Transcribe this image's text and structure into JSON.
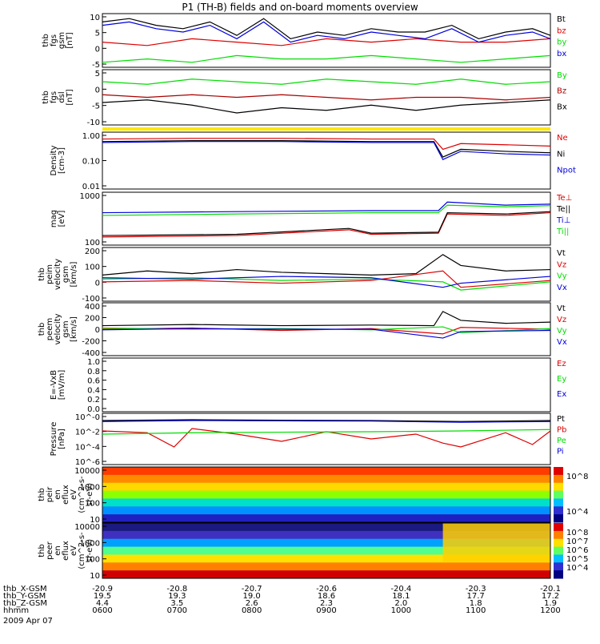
{
  "title": "P1 (TH-B) fields and on-board moments overview",
  "chart_data": [
    {
      "type": "line",
      "panel": "fgs",
      "ylabel": [
        "thb",
        "fgs",
        "gsm",
        "[nT]"
      ],
      "yticks": [
        "10",
        "5",
        "0",
        "-5"
      ],
      "ylim": [
        -5,
        10
      ],
      "legend": [
        "Bt",
        "bz",
        "by",
        "bx"
      ],
      "colors": [
        "#000000",
        "#dd0000",
        "#00dd00",
        "#0000dd"
      ],
      "series": [
        {
          "name": "Bt",
          "x": [
            0,
            0.06,
            0.12,
            0.18,
            0.24,
            0.3,
            0.36,
            0.42,
            0.48,
            0.54,
            0.6,
            0.66,
            0.72,
            0.78,
            0.84,
            0.9,
            0.96,
            1
          ],
          "y": [
            8,
            9,
            7,
            6,
            8,
            4,
            9,
            3,
            5,
            4,
            6,
            5,
            5,
            7,
            3,
            5,
            6,
            4
          ]
        },
        {
          "name": "bz",
          "x": [
            0,
            0.1,
            0.2,
            0.3,
            0.4,
            0.5,
            0.6,
            0.7,
            0.8,
            0.9,
            1
          ],
          "y": [
            2,
            1,
            3,
            2,
            1,
            3,
            2,
            3,
            2,
            2,
            3
          ]
        },
        {
          "name": "by",
          "x": [
            0,
            0.1,
            0.2,
            0.3,
            0.4,
            0.5,
            0.6,
            0.7,
            0.8,
            0.9,
            1
          ],
          "y": [
            -4,
            -3,
            -4,
            -2,
            -3,
            -3,
            -2,
            -3,
            -4,
            -3,
            -2
          ]
        },
        {
          "name": "bx",
          "x": [
            0,
            0.06,
            0.12,
            0.18,
            0.24,
            0.3,
            0.36,
            0.42,
            0.48,
            0.54,
            0.6,
            0.66,
            0.72,
            0.78,
            0.84,
            0.9,
            0.96,
            1
          ],
          "y": [
            7,
            8,
            6,
            5,
            7,
            3,
            8,
            2,
            4,
            3,
            5,
            4,
            3,
            6,
            2,
            4,
            5,
            3
          ]
        }
      ]
    },
    {
      "type": "line",
      "panel": "fgs_dsl",
      "ylabel": [
        "thb",
        "fgs",
        "dsl",
        "[nT]"
      ],
      "yticks": [
        "5",
        "0",
        "-5",
        "-10"
      ],
      "ylim": [
        -12,
        8
      ],
      "legend": [
        "By",
        "Bz",
        "Bx"
      ],
      "colors": [
        "#00dd00",
        "#aa0000",
        "#000000"
      ],
      "series": [
        {
          "name": "By",
          "x": [
            0,
            0.1,
            0.2,
            0.3,
            0.4,
            0.5,
            0.6,
            0.7,
            0.8,
            0.9,
            1
          ],
          "y": [
            4,
            3,
            5,
            4,
            3,
            5,
            4,
            3,
            5,
            3,
            4
          ]
        },
        {
          "name": "Bz",
          "x": [
            0,
            0.1,
            0.2,
            0.3,
            0.4,
            0.5,
            0.6,
            0.7,
            0.8,
            0.9,
            1
          ],
          "y": [
            -1,
            -2,
            -1,
            -2,
            -1,
            -2,
            -3,
            -2,
            -2,
            -3,
            -2
          ]
        },
        {
          "name": "Bx",
          "x": [
            0,
            0.1,
            0.2,
            0.3,
            0.4,
            0.5,
            0.6,
            0.7,
            0.8,
            0.9,
            1
          ],
          "y": [
            -4,
            -3,
            -5,
            -8,
            -6,
            -7,
            -5,
            -7,
            -5,
            -4,
            -3
          ]
        }
      ]
    },
    {
      "type": "line",
      "panel": "density",
      "ylabel": [
        "Density",
        "[cm-3]"
      ],
      "yticks": [
        "1.00",
        "0.10",
        "0.01"
      ],
      "ylog": true,
      "ylim": [
        0.01,
        1.2
      ],
      "legend": [
        "Ne",
        "Ni",
        "Npot"
      ],
      "colors": [
        "#dd0000",
        "#000000",
        "#0000dd"
      ],
      "series": [
        {
          "name": "Ne",
          "x": [
            0,
            0.2,
            0.4,
            0.6,
            0.74,
            0.76,
            0.8,
            0.9,
            1
          ],
          "y": [
            0.75,
            0.8,
            0.8,
            0.75,
            0.75,
            0.3,
            0.5,
            0.45,
            0.4
          ]
        },
        {
          "name": "Ni",
          "x": [
            0,
            0.2,
            0.4,
            0.6,
            0.74,
            0.76,
            0.8,
            0.9,
            1
          ],
          "y": [
            0.6,
            0.65,
            0.65,
            0.6,
            0.6,
            0.15,
            0.3,
            0.25,
            0.22
          ]
        },
        {
          "name": "Npot",
          "x": [
            0,
            0.2,
            0.4,
            0.6,
            0.74,
            0.76,
            0.8,
            0.9,
            1
          ],
          "y": [
            0.55,
            0.6,
            0.6,
            0.55,
            0.55,
            0.12,
            0.25,
            0.2,
            0.18
          ]
        }
      ]
    },
    {
      "type": "line",
      "panel": "temperature",
      "ylabel": [
        "mag",
        "[eV]"
      ],
      "yticks": [
        "1000",
        "100"
      ],
      "ylog": true,
      "ylim": [
        30,
        6000
      ],
      "legend": [
        "Te⊥",
        "Te||",
        "Ti⊥",
        "Ti||"
      ],
      "colors": [
        "#dd0000",
        "#000000",
        "#0000dd",
        "#00dd00"
      ],
      "series": [
        {
          "name": "Te⊥",
          "x": [
            0,
            0.3,
            0.55,
            0.6,
            0.75,
            0.77,
            0.9,
            1
          ],
          "y": [
            60,
            70,
            130,
            80,
            90,
            700,
            600,
            800
          ]
        },
        {
          "name": "Te||",
          "x": [
            0,
            0.3,
            0.55,
            0.6,
            0.75,
            0.77,
            0.9,
            1
          ],
          "y": [
            70,
            80,
            150,
            90,
            100,
            800,
            700,
            900
          ]
        },
        {
          "name": "Ti⊥",
          "x": [
            0,
            0.3,
            0.6,
            0.75,
            0.77,
            0.9,
            1
          ],
          "y": [
            800,
            900,
            1000,
            1000,
            2500,
            1800,
            2000
          ]
        },
        {
          "name": "Ti||",
          "x": [
            0,
            0.3,
            0.6,
            0.75,
            0.77,
            0.9,
            1
          ],
          "y": [
            600,
            700,
            800,
            800,
            1800,
            1500,
            1700
          ]
        }
      ]
    },
    {
      "type": "line",
      "panel": "peim_velocity",
      "ylabel": [
        "thb",
        "peim",
        "velocity",
        "gsm",
        "[km/s]"
      ],
      "yticks": [
        "200",
        "100",
        "0",
        "-100"
      ],
      "ylim": [
        -150,
        220
      ],
      "legend": [
        "Vt",
        "Vz",
        "Vy",
        "Vx"
      ],
      "colors": [
        "#000000",
        "#dd0000",
        "#00dd00",
        "#0000dd"
      ],
      "series": [
        {
          "name": "Vt",
          "x": [
            0,
            0.1,
            0.2,
            0.3,
            0.4,
            0.5,
            0.6,
            0.7,
            0.76,
            0.8,
            0.9,
            1
          ],
          "y": [
            30,
            60,
            40,
            70,
            50,
            40,
            30,
            40,
            180,
            100,
            60,
            70
          ]
        },
        {
          "name": "Vz",
          "x": [
            0,
            0.2,
            0.4,
            0.6,
            0.76,
            0.8,
            1
          ],
          "y": [
            -20,
            -10,
            -30,
            -10,
            60,
            -60,
            -10
          ]
        },
        {
          "name": "Vy",
          "x": [
            0,
            0.2,
            0.4,
            0.6,
            0.76,
            0.8,
            1
          ],
          "y": [
            0,
            10,
            -10,
            0,
            -20,
            -80,
            -20
          ]
        },
        {
          "name": "Vx",
          "x": [
            0,
            0.2,
            0.4,
            0.6,
            0.76,
            0.8,
            1
          ],
          "y": [
            10,
            0,
            20,
            10,
            -60,
            -30,
            20
          ]
        }
      ]
    },
    {
      "type": "line",
      "panel": "peem_velocity",
      "ylabel": [
        "thb",
        "peem",
        "velocity",
        "gsm",
        "[km/s]"
      ],
      "yticks": [
        "400",
        "200",
        "0",
        "-200",
        "-400"
      ],
      "ylim": [
        -420,
        420
      ],
      "legend": [
        "Vt",
        "Vz",
        "Vy",
        "Vx"
      ],
      "colors": [
        "#000000",
        "#dd0000",
        "#00dd00",
        "#0000dd"
      ],
      "series": [
        {
          "name": "Vt",
          "x": [
            0,
            0.2,
            0.4,
            0.6,
            0.74,
            0.76,
            0.8,
            0.9,
            1
          ],
          "y": [
            60,
            80,
            60,
            70,
            60,
            300,
            150,
            100,
            120
          ]
        },
        {
          "name": "Vz",
          "x": [
            0,
            0.2,
            0.4,
            0.6,
            0.76,
            0.8,
            1
          ],
          "y": [
            0,
            20,
            -20,
            10,
            -80,
            30,
            0
          ]
        },
        {
          "name": "Vy",
          "x": [
            0,
            0.2,
            0.4,
            0.6,
            0.76,
            0.8,
            1
          ],
          "y": [
            20,
            0,
            10,
            -10,
            40,
            -60,
            10
          ]
        },
        {
          "name": "Vx",
          "x": [
            0,
            0.2,
            0.4,
            0.6,
            0.76,
            0.8,
            1
          ],
          "y": [
            -10,
            10,
            0,
            0,
            -150,
            -40,
            -20
          ]
        }
      ]
    },
    {
      "type": "line",
      "panel": "e_vxb",
      "ylabel": [
        "E=-VxB",
        "[mV/m]"
      ],
      "yticks": [
        "1.0",
        "0.8",
        "0.6",
        "0.4",
        "0.2",
        "0.0"
      ],
      "ylim": [
        0,
        1
      ],
      "legend": [
        "Ez",
        "Ey",
        "Ex"
      ],
      "colors": [
        "#dd0000",
        "#00dd00",
        "#0000dd"
      ],
      "series": []
    },
    {
      "type": "line",
      "panel": "pressure",
      "ylabel": [
        "Pressure",
        "[nPa]"
      ],
      "yticks": [
        "10^-0",
        "10^-2",
        "10^-4",
        "10^-6"
      ],
      "ylog": true,
      "ylim": [
        1e-06,
        1
      ],
      "legend": [
        "Pt",
        "Pb",
        "Pe",
        "Pi"
      ],
      "colors": [
        "#000000",
        "#dd0000",
        "#00dd00",
        "#0000dd"
      ],
      "series": [
        {
          "name": "Pt",
          "x": [
            0,
            0.2,
            0.4,
            0.6,
            0.8,
            1
          ],
          "y": [
            0.2,
            0.25,
            0.22,
            0.2,
            0.15,
            0.2
          ]
        },
        {
          "name": "Pb",
          "x": [
            0,
            0.1,
            0.16,
            0.2,
            0.3,
            0.4,
            0.5,
            0.6,
            0.7,
            0.76,
            0.8,
            0.9,
            0.96,
            1
          ],
          "y": [
            0.01,
            0.006,
            0.0001,
            0.02,
            0.004,
            0.0005,
            0.008,
            0.001,
            0.004,
            0.0003,
            0.0001,
            0.006,
            0.0002,
            0.01
          ]
        },
        {
          "name": "Pe",
          "x": [
            0,
            0.2,
            0.4,
            0.6,
            0.8,
            1
          ],
          "y": [
            0.004,
            0.006,
            0.007,
            0.008,
            0.01,
            0.015
          ]
        },
        {
          "name": "Pi",
          "x": [
            0,
            0.2,
            0.4,
            0.6,
            0.8,
            1
          ],
          "y": [
            0.15,
            0.2,
            0.18,
            0.17,
            0.12,
            0.15
          ]
        }
      ]
    },
    {
      "type": "heatmap",
      "panel": "peir_eflux",
      "ylabel": [
        "thb",
        "peir",
        "en",
        "eflux",
        "eV",
        "(cm^2-s-",
        "sr-eV)"
      ],
      "yticks": [
        "10000",
        "1000",
        "100",
        "10"
      ],
      "ylog": true,
      "colorbar_ticks": [
        "10^8",
        "10^4"
      ]
    },
    {
      "type": "heatmap",
      "panel": "peer_eflux",
      "ylabel": [
        "thb",
        "peer",
        "en",
        "eflux",
        "eV",
        "(cm^2-s-",
        "sr-eV)"
      ],
      "yticks": [
        "10000",
        "1000",
        "100",
        "10"
      ],
      "ylog": true,
      "colorbar_ticks": [
        "10^8",
        "10^7",
        "10^6",
        "10^5",
        "10^4"
      ]
    }
  ],
  "xaxis": {
    "rows": [
      {
        "label": "thb_X-GSM",
        "values": [
          "-20.9",
          "-20.8",
          "-20.7",
          "-20.6",
          "-20.4",
          "-20.3",
          "-20.1"
        ]
      },
      {
        "label": "thb_Y-GSM",
        "values": [
          "19.5",
          "19.3",
          "19.0",
          "18.6",
          "18.1",
          "17.7",
          "17.2"
        ]
      },
      {
        "label": "thb_Z-GSM",
        "values": [
          "4.4",
          "3.5",
          "2.6",
          "2.3",
          "2.0",
          "1.8",
          "1.9"
        ]
      },
      {
        "label": "hhmm",
        "values": [
          "0600",
          "0700",
          "0800",
          "0900",
          "1000",
          "1100",
          "1200"
        ]
      }
    ],
    "date": "2009 Apr 07"
  }
}
